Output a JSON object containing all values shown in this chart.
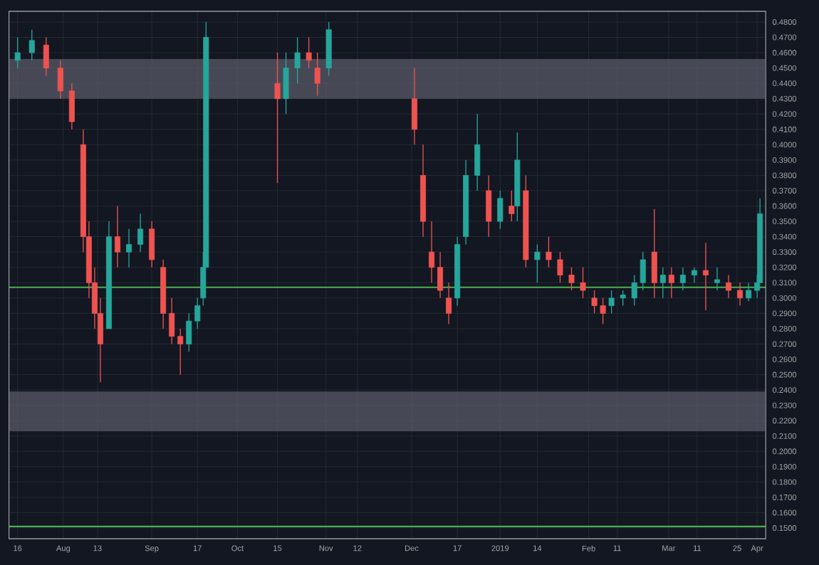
{
  "chart_data": {
    "type": "candlestick",
    "x": [
      "2018-07-16",
      "2018-07-21",
      "2018-07-26",
      "2018-07-31",
      "2018-08-04",
      "2018-08-08",
      "2018-08-10",
      "2018-08-12",
      "2018-08-14",
      "2018-08-17",
      "2018-08-20",
      "2018-08-24",
      "2018-08-28",
      "2018-09-01",
      "2018-09-05",
      "2018-09-08",
      "2018-09-11",
      "2018-09-14",
      "2018-09-17",
      "2018-09-19",
      "2018-09-20",
      "2018-10-15",
      "2018-10-18",
      "2018-10-22",
      "2018-10-26",
      "2018-10-29",
      "2018-11-02",
      "2018-12-02",
      "2018-12-05",
      "2018-12-08",
      "2018-12-11",
      "2018-12-14",
      "2018-12-17",
      "2018-12-20",
      "2018-12-24",
      "2018-12-28",
      "2019-01-01",
      "2019-01-05",
      "2019-01-07",
      "2019-01-10",
      "2019-01-14",
      "2019-01-18",
      "2019-01-22",
      "2019-01-26",
      "2019-01-30",
      "2019-02-03",
      "2019-02-06",
      "2019-02-09",
      "2019-02-13",
      "2019-02-17",
      "2019-02-20",
      "2019-02-24",
      "2019-02-27",
      "2019-03-02",
      "2019-03-06",
      "2019-03-10",
      "2019-03-14",
      "2019-03-18",
      "2019-03-22",
      "2019-03-26",
      "2019-03-29",
      "2019-04-01",
      "2019-04-02"
    ],
    "ohlc": [
      [
        0.455,
        0.47,
        0.45,
        0.46
      ],
      [
        0.46,
        0.475,
        0.455,
        0.468
      ],
      [
        0.465,
        0.47,
        0.445,
        0.45
      ],
      [
        0.45,
        0.455,
        0.43,
        0.435
      ],
      [
        0.435,
        0.44,
        0.41,
        0.415
      ],
      [
        0.4,
        0.41,
        0.33,
        0.34
      ],
      [
        0.34,
        0.35,
        0.3,
        0.31
      ],
      [
        0.31,
        0.32,
        0.28,
        0.29
      ],
      [
        0.29,
        0.3,
        0.245,
        0.27
      ],
      [
        0.28,
        0.35,
        0.28,
        0.34
      ],
      [
        0.34,
        0.36,
        0.32,
        0.33
      ],
      [
        0.33,
        0.345,
        0.32,
        0.335
      ],
      [
        0.335,
        0.355,
        0.33,
        0.345
      ],
      [
        0.345,
        0.35,
        0.32,
        0.325
      ],
      [
        0.32,
        0.325,
        0.28,
        0.29
      ],
      [
        0.29,
        0.3,
        0.27,
        0.275
      ],
      [
        0.275,
        0.28,
        0.25,
        0.27
      ],
      [
        0.27,
        0.29,
        0.265,
        0.285
      ],
      [
        0.285,
        0.3,
        0.28,
        0.295
      ],
      [
        0.3,
        0.33,
        0.295,
        0.32
      ],
      [
        0.32,
        0.48,
        0.32,
        0.47
      ],
      [
        0.44,
        0.46,
        0.375,
        0.43
      ],
      [
        0.43,
        0.46,
        0.42,
        0.45
      ],
      [
        0.45,
        0.47,
        0.44,
        0.46
      ],
      [
        0.46,
        0.47,
        0.45,
        0.455
      ],
      [
        0.45,
        0.46,
        0.432,
        0.44
      ],
      [
        0.45,
        0.48,
        0.445,
        0.475
      ],
      [
        0.43,
        0.45,
        0.4,
        0.41
      ],
      [
        0.38,
        0.4,
        0.34,
        0.35
      ],
      [
        0.33,
        0.35,
        0.31,
        0.32
      ],
      [
        0.32,
        0.33,
        0.3,
        0.305
      ],
      [
        0.3,
        0.31,
        0.283,
        0.29
      ],
      [
        0.3,
        0.34,
        0.295,
        0.335
      ],
      [
        0.34,
        0.39,
        0.335,
        0.38
      ],
      [
        0.38,
        0.42,
        0.37,
        0.4
      ],
      [
        0.37,
        0.38,
        0.34,
        0.35
      ],
      [
        0.35,
        0.37,
        0.345,
        0.365
      ],
      [
        0.36,
        0.37,
        0.35,
        0.355
      ],
      [
        0.36,
        0.408,
        0.35,
        0.39
      ],
      [
        0.37,
        0.38,
        0.32,
        0.325
      ],
      [
        0.325,
        0.335,
        0.31,
        0.33
      ],
      [
        0.33,
        0.34,
        0.32,
        0.325
      ],
      [
        0.325,
        0.33,
        0.31,
        0.315
      ],
      [
        0.315,
        0.32,
        0.305,
        0.31
      ],
      [
        0.31,
        0.32,
        0.3,
        0.305
      ],
      [
        0.3,
        0.305,
        0.29,
        0.295
      ],
      [
        0.295,
        0.3,
        0.283,
        0.29
      ],
      [
        0.295,
        0.305,
        0.29,
        0.3
      ],
      [
        0.3,
        0.305,
        0.295,
        0.302
      ],
      [
        0.3,
        0.315,
        0.295,
        0.31
      ],
      [
        0.31,
        0.33,
        0.305,
        0.325
      ],
      [
        0.33,
        0.358,
        0.3,
        0.31
      ],
      [
        0.31,
        0.32,
        0.3,
        0.315
      ],
      [
        0.315,
        0.32,
        0.3,
        0.31
      ],
      [
        0.31,
        0.32,
        0.305,
        0.315
      ],
      [
        0.315,
        0.32,
        0.31,
        0.318
      ],
      [
        0.318,
        0.336,
        0.292,
        0.315
      ],
      [
        0.31,
        0.32,
        0.305,
        0.312
      ],
      [
        0.31,
        0.315,
        0.3,
        0.305
      ],
      [
        0.305,
        0.31,
        0.295,
        0.3
      ],
      [
        0.3,
        0.31,
        0.298,
        0.305
      ],
      [
        0.305,
        0.315,
        0.3,
        0.31
      ],
      [
        0.31,
        0.365,
        0.31,
        0.355
      ]
    ],
    "colors": [
      "#26a69a",
      "#26a69a",
      "#ef5350",
      "#ef5350",
      "#ef5350",
      "#ef5350",
      "#ef5350",
      "#ef5350",
      "#ef5350",
      "#26a69a",
      "#ef5350",
      "#26a69a",
      "#26a69a",
      "#ef5350",
      "#ef5350",
      "#ef5350",
      "#ef5350",
      "#26a69a",
      "#26a69a",
      "#26a69a",
      "#26a69a",
      "#ef5350",
      "#26a69a",
      "#26a69a",
      "#ef5350",
      "#ef5350",
      "#26a69a",
      "#ef5350",
      "#ef5350",
      "#ef5350",
      "#ef5350",
      "#ef5350",
      "#26a69a",
      "#26a69a",
      "#26a69a",
      "#ef5350",
      "#26a69a",
      "#ef5350",
      "#26a69a",
      "#ef5350",
      "#26a69a",
      "#ef5350",
      "#ef5350",
      "#ef5350",
      "#ef5350",
      "#ef5350",
      "#ef5350",
      "#26a69a",
      "#26a69a",
      "#26a69a",
      "#26a69a",
      "#ef5350",
      "#26a69a",
      "#ef5350",
      "#26a69a",
      "#26a69a",
      "#ef5350",
      "#26a69a",
      "#ef5350",
      "#ef5350",
      "#26a69a",
      "#26a69a",
      "#26a69a"
    ],
    "xlim": [
      "2018-07-13",
      "2019-04-04"
    ],
    "xticks": [
      {
        "value": "2018-07-16",
        "label": "16"
      },
      {
        "value": "2018-08-01",
        "label": "Aug"
      },
      {
        "value": "2018-08-13",
        "label": "13"
      },
      {
        "value": "2018-09-01",
        "label": "Sep"
      },
      {
        "value": "2018-09-17",
        "label": "17"
      },
      {
        "value": "2018-10-01",
        "label": "Oct"
      },
      {
        "value": "2018-10-15",
        "label": "15"
      },
      {
        "value": "2018-11-01",
        "label": "Nov"
      },
      {
        "value": "2018-11-12",
        "label": "12"
      },
      {
        "value": "2018-12-01",
        "label": "Dec"
      },
      {
        "value": "2018-12-17",
        "label": "17"
      },
      {
        "value": "2019-01-01",
        "label": "2019"
      },
      {
        "value": "2019-01-14",
        "label": "14"
      },
      {
        "value": "2019-02-01",
        "label": "Feb"
      },
      {
        "value": "2019-02-11",
        "label": "11"
      },
      {
        "value": "2019-03-01",
        "label": "Mar"
      },
      {
        "value": "2019-03-11",
        "label": "11"
      },
      {
        "value": "2019-03-25",
        "label": "25"
      },
      {
        "value": "2019-04-01",
        "label": "Apr"
      }
    ],
    "ylim": [
      0.143,
      0.487
    ],
    "yticks": [
      {
        "value": 0.48,
        "label": "0.4800"
      },
      {
        "value": 0.47,
        "label": "0.4700"
      },
      {
        "value": 0.46,
        "label": "0.4600"
      },
      {
        "value": 0.45,
        "label": "0.4500"
      },
      {
        "value": 0.44,
        "label": "0.4400"
      },
      {
        "value": 0.43,
        "label": "0.4300"
      },
      {
        "value": 0.42,
        "label": "0.4200"
      },
      {
        "value": 0.41,
        "label": "0.4100"
      },
      {
        "value": 0.4,
        "label": "0.4000"
      },
      {
        "value": 0.39,
        "label": "0.3900"
      },
      {
        "value": 0.38,
        "label": "0.3800"
      },
      {
        "value": 0.37,
        "label": "0.3700"
      },
      {
        "value": 0.36,
        "label": "0.3600"
      },
      {
        "value": 0.35,
        "label": "0.3500"
      },
      {
        "value": 0.34,
        "label": "0.3400"
      },
      {
        "value": 0.33,
        "label": "0.3300"
      },
      {
        "value": 0.32,
        "label": "0.3200"
      },
      {
        "value": 0.31,
        "label": "0.3100"
      },
      {
        "value": 0.3,
        "label": "0.3000"
      },
      {
        "value": 0.29,
        "label": "0.2900"
      },
      {
        "value": 0.28,
        "label": "0.2800"
      },
      {
        "value": 0.27,
        "label": "0.2700"
      },
      {
        "value": 0.26,
        "label": "0.2600"
      },
      {
        "value": 0.25,
        "label": "0.2500"
      },
      {
        "value": 0.24,
        "label": "0.2400"
      },
      {
        "value": 0.23,
        "label": "0.2300"
      },
      {
        "value": 0.22,
        "label": "0.2200"
      },
      {
        "value": 0.21,
        "label": "0.2100"
      },
      {
        "value": 0.2,
        "label": "0.2000"
      },
      {
        "value": 0.19,
        "label": "0.1900"
      },
      {
        "value": 0.18,
        "label": "0.1800"
      },
      {
        "value": 0.17,
        "label": "0.1700"
      },
      {
        "value": 0.16,
        "label": "0.1600"
      },
      {
        "value": 0.15,
        "label": "0.1500"
      }
    ],
    "grid": true,
    "ref_lines": [
      {
        "axis": "y",
        "value": 0.307,
        "color": "#4caf50"
      },
      {
        "axis": "y",
        "value": 0.151,
        "color": "#4caf50"
      }
    ],
    "bands": [
      {
        "axis": "y",
        "from": 0.43,
        "to": 0.456,
        "color": "#5d606b"
      },
      {
        "axis": "y",
        "from": 0.213,
        "to": 0.239,
        "color": "#5d606b"
      }
    ]
  }
}
